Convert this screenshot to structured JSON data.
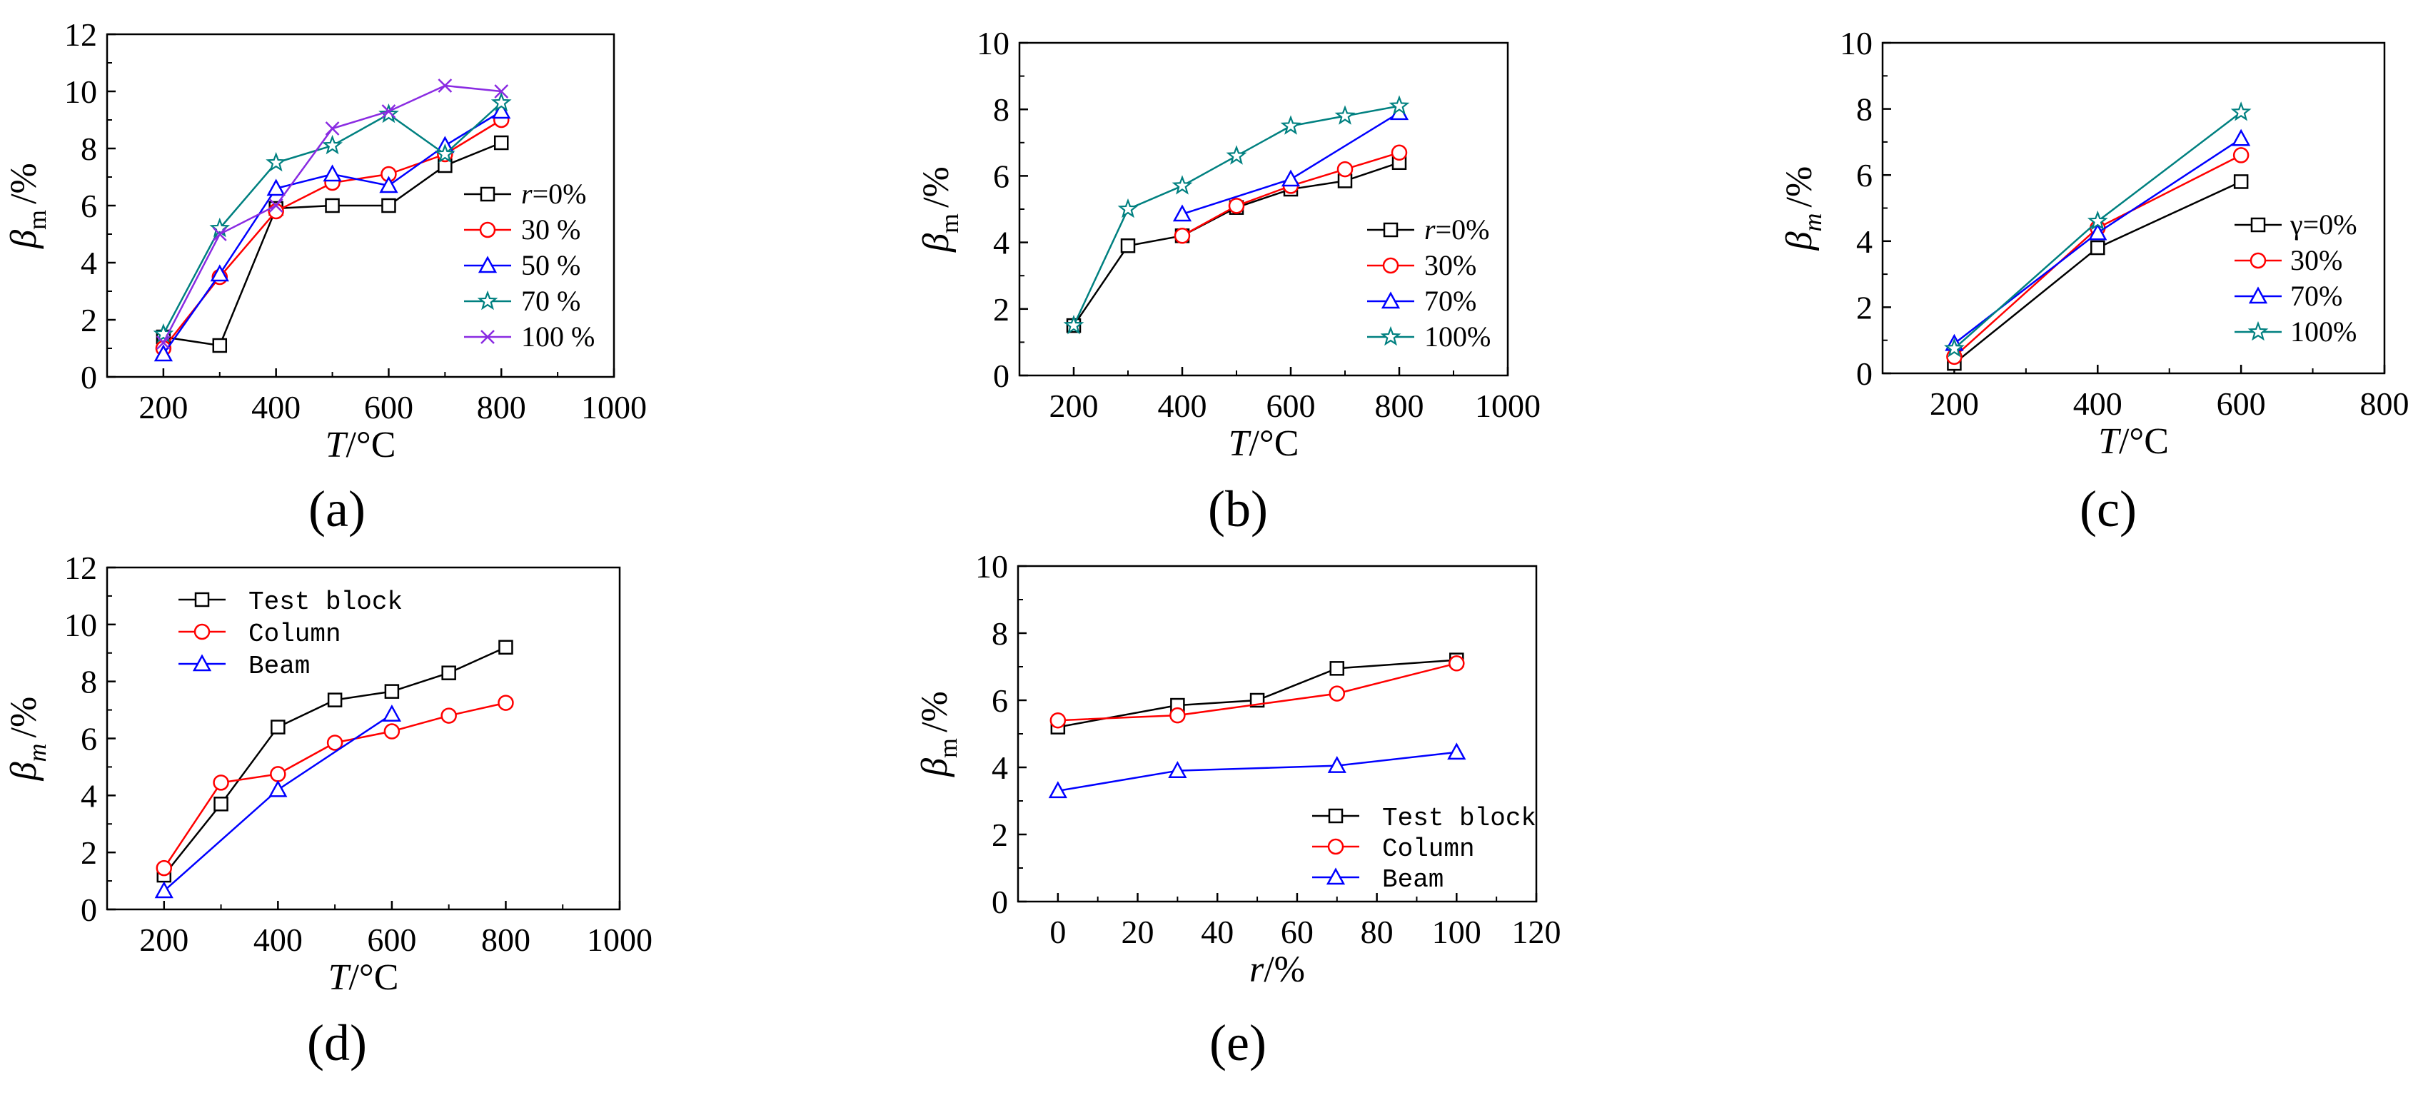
{
  "figure_labels": [
    "(a)",
    "(b)",
    "(c)",
    "(d)",
    "(e)"
  ],
  "chart_data": [
    {
      "id": "a",
      "type": "line",
      "panel_label": "(a)",
      "xlabel_var": "T",
      "xlabel_unit": "/°C",
      "ylabel_sym": "β",
      "ylabel_sub": "m",
      "ylabel_sub_italic": false,
      "ylabel_unit": "/%",
      "xlim": [
        100,
        1000
      ],
      "xticks": [
        200,
        400,
        600,
        800,
        1000
      ],
      "ylim": [
        0,
        12
      ],
      "yticks": [
        0,
        2,
        4,
        6,
        8,
        10,
        12
      ],
      "legend_position": "right",
      "legend_font": "serif",
      "series": [
        {
          "name": "r=0%",
          "name_var": "r",
          "name_rest": "=0%",
          "color": "#000000",
          "marker": "square",
          "x": [
            200,
            300,
            400,
            500,
            600,
            700,
            800
          ],
          "y": [
            1.4,
            1.1,
            5.9,
            6.0,
            6.0,
            7.4,
            8.2
          ]
        },
        {
          "name": "30 %",
          "color": "#ff0000",
          "marker": "circle",
          "x": [
            200,
            300,
            400,
            500,
            600,
            700,
            800
          ],
          "y": [
            1.0,
            3.5,
            5.8,
            6.8,
            7.1,
            7.8,
            9.0
          ]
        },
        {
          "name": "50 %",
          "color": "#0000ff",
          "marker": "triangle",
          "x": [
            200,
            300,
            400,
            500,
            600,
            700,
            800
          ],
          "y": [
            0.8,
            3.6,
            6.6,
            7.1,
            6.7,
            8.1,
            9.3
          ]
        },
        {
          "name": "70 %",
          "color": "#008080",
          "marker": "star",
          "x": [
            200,
            300,
            400,
            500,
            600,
            700,
            800
          ],
          "y": [
            1.5,
            5.2,
            7.5,
            8.1,
            9.2,
            7.8,
            9.6
          ]
        },
        {
          "name": "100 %",
          "color": "#8a2be2",
          "marker": "x",
          "x": [
            200,
            300,
            400,
            500,
            600,
            700,
            800
          ],
          "y": [
            1.2,
            5.0,
            6.0,
            8.7,
            9.3,
            10.2,
            10.0
          ]
        }
      ]
    },
    {
      "id": "b",
      "type": "line",
      "panel_label": "(b)",
      "xlabel_var": "T",
      "xlabel_unit": "/°C",
      "ylabel_sym": "β",
      "ylabel_sub": "m",
      "ylabel_sub_italic": false,
      "ylabel_unit": "/%",
      "xlim": [
        100,
        1000
      ],
      "xticks": [
        200,
        400,
        600,
        800,
        1000
      ],
      "ylim": [
        0,
        10
      ],
      "yticks": [
        0,
        2,
        4,
        6,
        8,
        10
      ],
      "legend_position": "right",
      "legend_font": "serif",
      "series": [
        {
          "name": "r=0%",
          "name_var": "r",
          "name_rest": "=0%",
          "color": "#000000",
          "marker": "square",
          "x": [
            200,
            300,
            400,
            500,
            600,
            700,
            800
          ],
          "y": [
            1.5,
            3.9,
            4.2,
            5.05,
            5.6,
            5.85,
            6.4
          ]
        },
        {
          "name": "30%",
          "color": "#ff0000",
          "marker": "circle",
          "x": [
            400,
            500,
            600,
            700,
            800
          ],
          "y": [
            4.2,
            5.1,
            5.7,
            6.2,
            6.7
          ]
        },
        {
          "name": "70%",
          "color": "#0000ff",
          "marker": "triangle",
          "x": [
            400,
            600,
            800
          ],
          "y": [
            4.85,
            5.9,
            7.9
          ]
        },
        {
          "name": "100%",
          "color": "#008080",
          "marker": "star",
          "x": [
            200,
            300,
            400,
            500,
            600,
            700,
            800
          ],
          "y": [
            1.5,
            5.0,
            5.7,
            6.6,
            7.5,
            7.8,
            8.1
          ]
        }
      ]
    },
    {
      "id": "c",
      "type": "line",
      "panel_label": "(c)",
      "xlabel_var": "T",
      "xlabel_unit": "/°C",
      "ylabel_sym": "β",
      "ylabel_sub": "m",
      "ylabel_sub_italic": true,
      "ylabel_unit": "/%",
      "xlim": [
        100,
        800
      ],
      "xticks": [
        200,
        400,
        600,
        800
      ],
      "ylim": [
        0,
        10
      ],
      "yticks": [
        0,
        2,
        4,
        6,
        8,
        10
      ],
      "legend_position": "right",
      "legend_font": "serif",
      "series": [
        {
          "name": "γ=0%",
          "color": "#000000",
          "marker": "square",
          "x": [
            200,
            400,
            600
          ],
          "y": [
            0.3,
            3.8,
            5.8
          ]
        },
        {
          "name": "30%",
          "color": "#ff0000",
          "marker": "circle",
          "x": [
            200,
            400,
            600
          ],
          "y": [
            0.5,
            4.4,
            6.6
          ]
        },
        {
          "name": "70%",
          "color": "#0000ff",
          "marker": "triangle",
          "x": [
            200,
            400,
            600
          ],
          "y": [
            0.9,
            4.25,
            7.1
          ]
        },
        {
          "name": "100%",
          "color": "#008080",
          "marker": "star",
          "x": [
            200,
            400,
            600
          ],
          "y": [
            0.75,
            4.6,
            7.9
          ]
        }
      ]
    },
    {
      "id": "d",
      "type": "line",
      "panel_label": "(d)",
      "xlabel_var": "T",
      "xlabel_unit": "/°C",
      "ylabel_sym": "β",
      "ylabel_sub": "m",
      "ylabel_sub_italic": true,
      "ylabel_unit": "/%",
      "xlim": [
        100,
        1000
      ],
      "xticks": [
        200,
        400,
        600,
        800,
        1000
      ],
      "ylim": [
        0,
        12
      ],
      "yticks": [
        0,
        2,
        4,
        6,
        8,
        10,
        12
      ],
      "legend_position": "top-left",
      "legend_font": "mono",
      "series": [
        {
          "name": "Test block",
          "color": "#000000",
          "marker": "square",
          "x": [
            200,
            300,
            400,
            500,
            600,
            700,
            800
          ],
          "y": [
            1.2,
            3.7,
            6.4,
            7.35,
            7.65,
            8.3,
            9.2
          ]
        },
        {
          "name": "Column",
          "color": "#ff0000",
          "marker": "circle",
          "x": [
            200,
            300,
            400,
            500,
            600,
            700,
            800
          ],
          "y": [
            1.45,
            4.45,
            4.75,
            5.85,
            6.25,
            6.8,
            7.25
          ]
        },
        {
          "name": "Beam",
          "color": "#0000ff",
          "marker": "triangle",
          "x": [
            200,
            400,
            600
          ],
          "y": [
            0.65,
            4.2,
            6.85
          ]
        }
      ]
    },
    {
      "id": "e",
      "type": "line",
      "panel_label": "(e)",
      "xlabel_var": "r",
      "xlabel_unit": "/%",
      "ylabel_sym": "β",
      "ylabel_sub": "m",
      "ylabel_sub_italic": false,
      "ylabel_unit": "/%",
      "xlim": [
        -10,
        120
      ],
      "xticks": [
        0,
        20,
        40,
        60,
        80,
        100,
        120
      ],
      "ylim": [
        0,
        10
      ],
      "yticks": [
        0,
        2,
        4,
        6,
        8,
        10
      ],
      "legend_position": "bottom-right",
      "legend_font": "mono",
      "series": [
        {
          "name": "Test block",
          "color": "#000000",
          "marker": "square",
          "x": [
            0,
            30,
            50,
            70,
            100
          ],
          "y": [
            5.2,
            5.85,
            6.0,
            6.95,
            7.2
          ]
        },
        {
          "name": "Column",
          "color": "#ff0000",
          "marker": "circle",
          "x": [
            0,
            30,
            70,
            100
          ],
          "y": [
            5.4,
            5.55,
            6.2,
            7.1
          ]
        },
        {
          "name": "Beam",
          "color": "#0000ff",
          "marker": "triangle",
          "x": [
            0,
            30,
            70,
            100
          ],
          "y": [
            3.3,
            3.9,
            4.05,
            4.45
          ]
        }
      ]
    }
  ]
}
